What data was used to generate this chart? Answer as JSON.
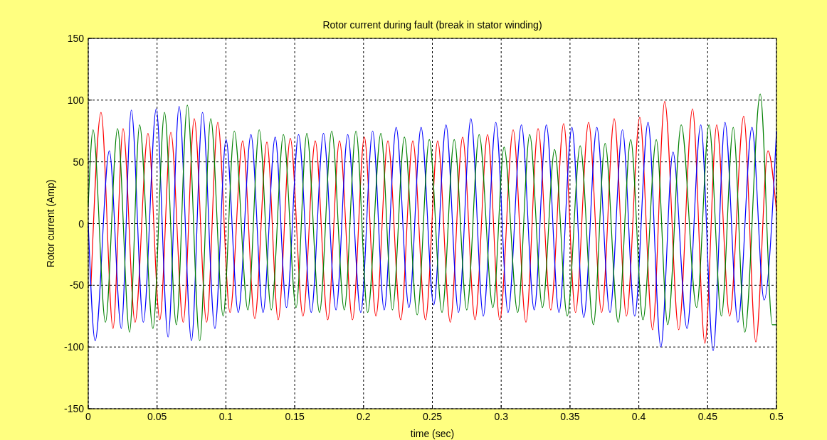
{
  "chart_data": {
    "type": "line",
    "title": "Rotor current during fault (break in stator winding)",
    "xlabel": "time (sec)",
    "ylabel": "Rotor current (Amp)",
    "xlim": [
      0,
      0.5
    ],
    "xticks": [
      0,
      0.05,
      0.1,
      0.15,
      0.2,
      0.25,
      0.3,
      0.35,
      0.4,
      0.45,
      0.5
    ],
    "ylim": [
      -150,
      150
    ],
    "yticks": [
      -150,
      -100,
      -50,
      0,
      50,
      100,
      150
    ],
    "grid": true,
    "series": [
      {
        "color": "#ff0000",
        "x": [
          0.002,
          0.0093,
          0.018,
          0.0253,
          0.034,
          0.0434,
          0.052,
          0.06,
          0.069,
          0.077,
          0.086,
          0.0941,
          0.103,
          0.1122,
          0.121,
          0.1298,
          0.138,
          0.1468,
          0.156,
          0.1649,
          0.174,
          0.1825,
          0.192,
          0.2006,
          0.209,
          0.2177,
          0.227,
          0.2358,
          0.245,
          0.2539,
          0.263,
          0.272,
          0.281,
          0.2901,
          0.299,
          0.3087,
          0.318,
          0.3268,
          0.336,
          0.3454,
          0.354,
          0.3635,
          0.373,
          0.3821,
          0.391,
          0.4007,
          0.41,
          0.4188,
          0.429,
          0.439,
          0.448,
          0.4566,
          0.466,
          0.4762,
          0.485,
          0.4938,
          0.5
        ],
        "values": [
          -50,
          90,
          -85,
          77,
          -80,
          73,
          -78,
          74,
          -80,
          85,
          -80,
          82,
          -72,
          67,
          -77,
          66,
          -78,
          69,
          -75,
          67,
          -78,
          67,
          -78,
          70,
          -75,
          67,
          -78,
          67,
          -78,
          67,
          -80,
          70,
          -78,
          72,
          -78,
          76,
          -80,
          77,
          -70,
          81,
          -72,
          82,
          -72,
          85,
          -75,
          86,
          -86,
          99,
          -86,
          93,
          -97,
          80,
          -75,
          87,
          -96,
          59,
          10
        ]
      },
      {
        "color": "#0000ff",
        "x": [
          0,
          0.005,
          0.0153,
          0.024,
          0.0313,
          0.04,
          0.0494,
          0.058,
          0.066,
          0.075,
          0.083,
          0.092,
          0.1001,
          0.109,
          0.1182,
          0.127,
          0.1358,
          0.144,
          0.1528,
          0.162,
          0.1709,
          0.18,
          0.1885,
          0.198,
          0.2066,
          0.215,
          0.2237,
          0.233,
          0.2418,
          0.251,
          0.2599,
          0.269,
          0.278,
          0.287,
          0.2961,
          0.305,
          0.3147,
          0.324,
          0.3328,
          0.342,
          0.3514,
          0.36,
          0.3695,
          0.379,
          0.3881,
          0.397,
          0.4067,
          0.416,
          0.4248,
          0.435,
          0.445,
          0.454,
          0.4626,
          0.472,
          0.4822,
          0.491,
          0.5
        ],
        "values": [
          0,
          -95,
          59,
          -85,
          92,
          -80,
          93,
          -92,
          95,
          -95,
          90,
          -85,
          68,
          -72,
          72,
          -72,
          70,
          -68,
          72,
          -72,
          73,
          -70,
          72,
          -72,
          75,
          -70,
          78,
          -68,
          78,
          -66,
          80,
          -72,
          85,
          -75,
          82,
          -72,
          80,
          -70,
          80,
          -72,
          78,
          -76,
          78,
          -72,
          76,
          -75,
          82,
          -100,
          58,
          -85,
          80,
          -103,
          82,
          -80,
          78,
          -62,
          75
        ]
      },
      {
        "color": "#008000",
        "x": [
          0,
          0.0035,
          0.0125,
          0.0213,
          0.03,
          0.0373,
          0.047,
          0.0554,
          0.064,
          0.072,
          0.081,
          0.089,
          0.098,
          0.1061,
          0.116,
          0.1242,
          0.133,
          0.1418,
          0.151,
          0.1588,
          0.168,
          0.1769,
          0.186,
          0.1945,
          0.203,
          0.2126,
          0.221,
          0.2297,
          0.239,
          0.2478,
          0.257,
          0.2659,
          0.275,
          0.284,
          0.294,
          0.3021,
          0.312,
          0.3207,
          0.33,
          0.3388,
          0.348,
          0.3574,
          0.367,
          0.3755,
          0.385,
          0.3941,
          0.403,
          0.4127,
          0.421,
          0.4308,
          0.442,
          0.451,
          0.46,
          0.4686,
          0.477,
          0.4882,
          0.497,
          0.5
        ],
        "values": [
          15,
          76,
          -80,
          77,
          -88,
          80,
          -85,
          90,
          -82,
          96,
          -95,
          85,
          -75,
          75,
          -70,
          76,
          -70,
          72,
          -68,
          73,
          -72,
          75,
          -70,
          75,
          -72,
          73,
          -70,
          70,
          -74,
          68,
          -72,
          68,
          -70,
          72,
          -68,
          62,
          -72,
          72,
          -68,
          60,
          -75,
          63,
          -82,
          65,
          -80,
          68,
          -78,
          68,
          -82,
          80,
          -68,
          80,
          -75,
          78,
          -88,
          105,
          -82,
          -82
        ]
      }
    ]
  }
}
